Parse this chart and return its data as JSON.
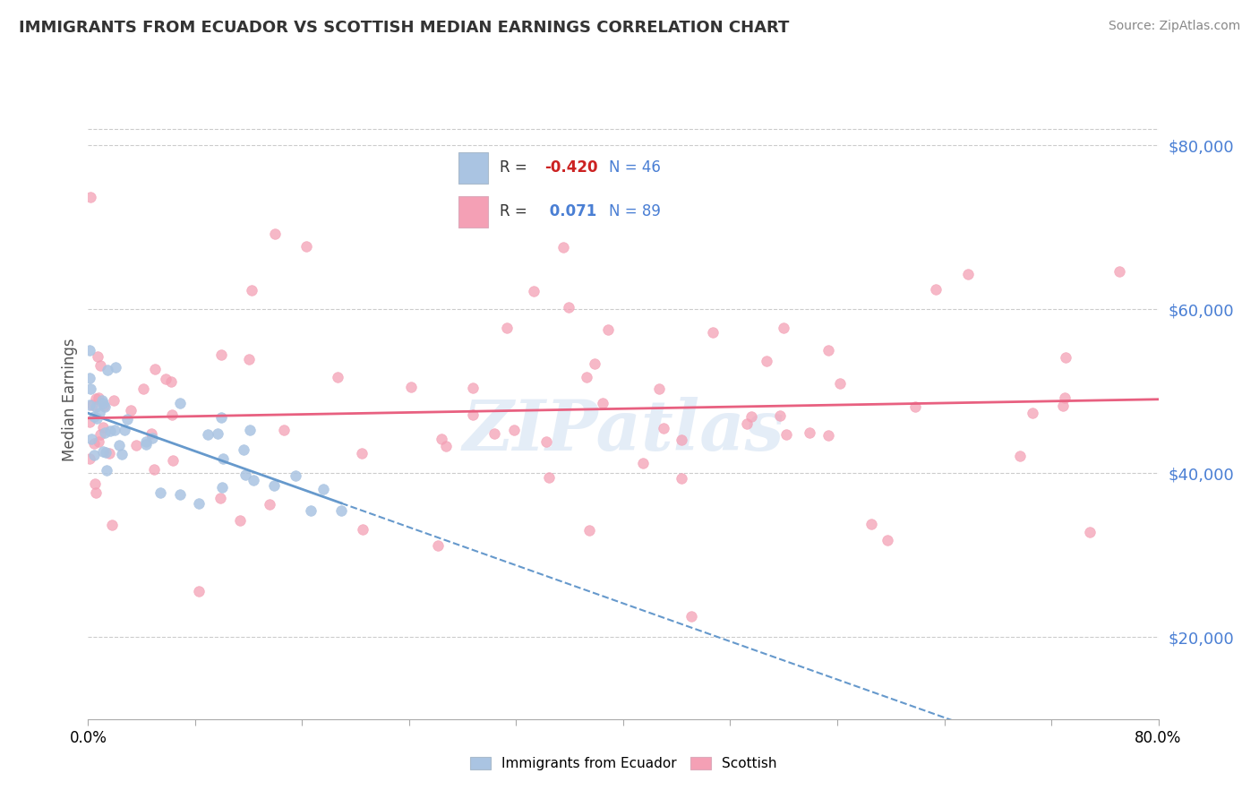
{
  "title": "IMMIGRANTS FROM ECUADOR VS SCOTTISH MEDIAN EARNINGS CORRELATION CHART",
  "source": "Source: ZipAtlas.com",
  "ylabel": "Median Earnings",
  "y_tick_labels": [
    "$20,000",
    "$40,000",
    "$60,000",
    "$80,000"
  ],
  "y_tick_values": [
    20000,
    40000,
    60000,
    80000
  ],
  "xlim": [
    0.0,
    0.8
  ],
  "ylim": [
    10000,
    88000
  ],
  "watermark": "ZIPatlas",
  "ecuador_R": "-0.420",
  "ecuador_N": "46",
  "scottish_R": "0.071",
  "scottish_N": "89",
  "ecuador_color": "#aac4e2",
  "scottish_color": "#f4a0b5",
  "ecuador_line_color": "#6699cc",
  "scottish_line_color": "#e86080",
  "legend_box_color": "#dddddd",
  "grid_color": "#cccccc",
  "ytick_color": "#4a7fd4",
  "title_color": "#333333",
  "source_color": "#888888"
}
